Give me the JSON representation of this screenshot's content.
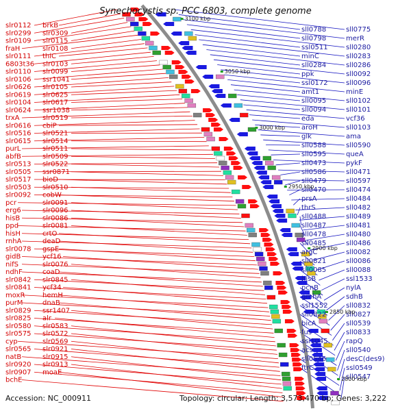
{
  "header": {
    "title": "Synechocystis sp. PCC 6803, complete genome"
  },
  "footer": {
    "accession": "Accession: NC_000911",
    "topology": "Topology: circular; Length: 3,573,470 bp; Genes: 3,222"
  },
  "positions": [
    "3100 kbp",
    "3050 kbp",
    "3000 kbp",
    "2950 kbp",
    "2900 kbp",
    "2850 kbp",
    "2800 kbp"
  ],
  "left_labels": [
    "slr0112",
    "brkB",
    "slr0299",
    "slr0309",
    "slr0109",
    "slr0115",
    "fraH",
    "slr0108",
    "slr0111",
    "thiC",
    "6803t36",
    "slr0103",
    "slr0110",
    "slr0099",
    "slr0106",
    "ssr1041",
    "slr0626",
    "slr0105",
    "slr0619",
    "slr0625",
    "slr0104",
    "slr0617",
    "slr0624",
    "ssr1038",
    "trxA",
    "slr0519",
    "slr0616",
    "cbiP",
    "slr0516",
    "slr0521",
    "slr0615",
    "slr0514",
    "purL",
    "slr0511",
    "abfB",
    "slr0509",
    "slr0513",
    "slr0522",
    "slr0505",
    "ssr0871",
    "slr0517",
    "bioD",
    "slr0503",
    "slr0510",
    "slr0092",
    "cobW",
    "pcr",
    "slr0091",
    "erg6",
    "slr0096",
    "hisB",
    "slr0086",
    "ppd",
    "slr0081",
    "hisH",
    "crtO",
    "rnhA",
    "deaD",
    "slr0078",
    "gspE",
    "gidB",
    "ycf16",
    "nifS",
    "slr0076",
    "ndhF",
    "coaD",
    "slr0842",
    "slr0845",
    "slr0841",
    "ycf34",
    "moxR",
    "hemH",
    "purM",
    "dnaB",
    "slr0829",
    "ssr1407",
    "slr0825",
    "alr",
    "slr0580",
    "slr0583",
    "slr0575",
    "slr0572",
    "cyp",
    "slr0569",
    "slr0565",
    "slr0921",
    "natB",
    "slr0915",
    "slr0920",
    "slr0913",
    "slr0907",
    "moaE",
    "bchE"
  ],
  "right_labels": [
    "sll0775",
    "sll0788",
    "merR",
    "sll0798",
    "sll0280",
    "ssl0511",
    "sll0283",
    "minC",
    "sll0286",
    "sll0284",
    "sll0092",
    "ppk",
    "sll0096",
    "ssl0172",
    "minE",
    "amt1",
    "sll0102",
    "sll0095",
    "sll0101",
    "sll0094",
    "vcf36",
    "eda",
    "sll0103",
    "aroH",
    "ama",
    "glk",
    "sll0590",
    "sll0588",
    "queA",
    "sll0595",
    "pykF",
    "sll0473",
    "sll0471",
    "sll0586",
    "sll0597",
    "sll0479",
    "sll0474",
    "sll0470",
    "sll0484",
    "prsA",
    "sll0482",
    "thrS",
    "sll0489",
    "sll0488",
    "sll0481",
    "sll0487",
    "sll0480",
    "sll0478",
    "sll0486",
    "sll0485",
    "sll0082",
    "argC",
    "sll0086",
    "sll0821",
    "sll0088",
    "sll0085",
    "ssl1533",
    "hisB",
    "nylA",
    "pcnB",
    "sdhB",
    "gmhA",
    "sll0832",
    "ssl1552",
    "sll0827",
    "sll0822",
    "sll0539",
    "bicA",
    "sll0833",
    "fus",
    "rapQ",
    "ssl1045",
    "sll0540",
    "acs",
    "desC(des9)",
    "sll0546",
    "ssl0549",
    "ftrC",
    "sll0547"
  ],
  "colors": {
    "backbone": "#8c8c8c",
    "left_line": "#e00000",
    "right_line": "#1010c0",
    "forward_feature": "#ff1010",
    "reverse_feature": "#1a1ae0",
    "position_tick": "#20a020"
  }
}
